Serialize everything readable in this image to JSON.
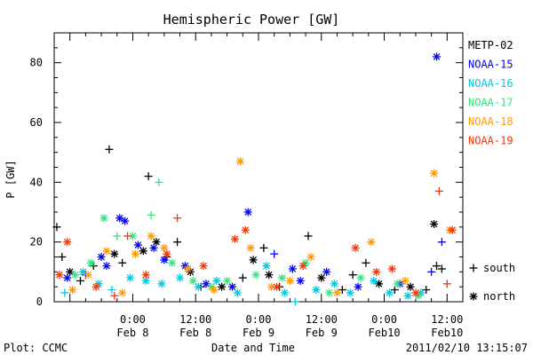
{
  "chart_data": {
    "type": "scatter",
    "title": "Hemispheric Power [GW]",
    "xlabel": "Date and Time",
    "ylabel": "P [GW]",
    "xlim": [
      "2011-02-07 09:00",
      "2011-02-10 15:00"
    ],
    "ylim": [
      0,
      90
    ],
    "yticks": [
      0,
      20,
      40,
      60,
      80
    ],
    "xtick_labels": [
      {
        "time": "2011-02-08 00:00",
        "top": "0:00",
        "bottom": "Feb 8"
      },
      {
        "time": "2011-02-08 12:00",
        "top": "12:00",
        "bottom": "Feb 8"
      },
      {
        "time": "2011-02-09 00:00",
        "top": "0:00",
        "bottom": "Feb 9"
      },
      {
        "time": "2011-02-09 12:00",
        "top": "12:00",
        "bottom": "Feb 9"
      },
      {
        "time": "2011-02-10 00:00",
        "top": "0:00",
        "bottom": "Feb10"
      },
      {
        "time": "2011-02-10 12:00",
        "top": "12:00",
        "bottom": "Feb10"
      }
    ],
    "marker_legend": [
      {
        "symbol": "+",
        "label": "south"
      },
      {
        "symbol": "*",
        "label": "north"
      }
    ],
    "series": [
      {
        "name": "METP-02",
        "color": "#000000",
        "points": [
          {
            "x": "2011-02-07 09:30",
            "y": 25,
            "m": "south"
          },
          {
            "x": "2011-02-07 10:30",
            "y": 15,
            "m": "south"
          },
          {
            "x": "2011-02-07 12:00",
            "y": 10,
            "m": "north"
          },
          {
            "x": "2011-02-07 14:00",
            "y": 7,
            "m": "south"
          },
          {
            "x": "2011-02-07 16:30",
            "y": 12,
            "m": "south"
          },
          {
            "x": "2011-02-07 19:30",
            "y": 51,
            "m": "south"
          },
          {
            "x": "2011-02-07 20:30",
            "y": 16,
            "m": "north"
          },
          {
            "x": "2011-02-07 22:00",
            "y": 13,
            "m": "south"
          },
          {
            "x": "2011-02-08 02:00",
            "y": 17,
            "m": "north"
          },
          {
            "x": "2011-02-08 03:00",
            "y": 42,
            "m": "south"
          },
          {
            "x": "2011-02-08 04:30",
            "y": 20,
            "m": "north"
          },
          {
            "x": "2011-02-08 06:30",
            "y": 15,
            "m": "south"
          },
          {
            "x": "2011-02-08 08:30",
            "y": 20,
            "m": "south"
          },
          {
            "x": "2011-02-08 11:00",
            "y": 10,
            "m": "north"
          },
          {
            "x": "2011-02-08 13:00",
            "y": 5,
            "m": "south"
          },
          {
            "x": "2011-02-08 17:00",
            "y": 5,
            "m": "north"
          },
          {
            "x": "2011-02-08 21:00",
            "y": 8,
            "m": "south"
          },
          {
            "x": "2011-02-08 23:00",
            "y": 14,
            "m": "north"
          },
          {
            "x": "2011-02-09 01:00",
            "y": 18,
            "m": "south"
          },
          {
            "x": "2011-02-09 02:00",
            "y": 9,
            "m": "north"
          },
          {
            "x": "2011-02-09 04:00",
            "y": 5,
            "m": "south"
          },
          {
            "x": "2011-02-09 09:30",
            "y": 22,
            "m": "south"
          },
          {
            "x": "2011-02-09 12:00",
            "y": 8,
            "m": "north"
          },
          {
            "x": "2011-02-09 16:00",
            "y": 4,
            "m": "south"
          },
          {
            "x": "2011-02-09 18:00",
            "y": 9,
            "m": "south"
          },
          {
            "x": "2011-02-09 20:30",
            "y": 13,
            "m": "south"
          },
          {
            "x": "2011-02-09 23:00",
            "y": 6,
            "m": "north"
          },
          {
            "x": "2011-02-10 02:00",
            "y": 4,
            "m": "south"
          },
          {
            "x": "2011-02-10 05:00",
            "y": 5,
            "m": "north"
          },
          {
            "x": "2011-02-10 08:00",
            "y": 4,
            "m": "south"
          },
          {
            "x": "2011-02-10 09:30",
            "y": 26,
            "m": "north"
          },
          {
            "x": "2011-02-10 10:00",
            "y": 12,
            "m": "south"
          },
          {
            "x": "2011-02-10 11:00",
            "y": 11,
            "m": "south"
          }
        ]
      },
      {
        "name": "NOAA-15",
        "color": "#0000ff",
        "points": [
          {
            "x": "2011-02-07 11:30",
            "y": 8,
            "m": "north"
          },
          {
            "x": "2011-02-07 15:00",
            "y": 9,
            "m": "south"
          },
          {
            "x": "2011-02-07 18:00",
            "y": 15,
            "m": "north"
          },
          {
            "x": "2011-02-07 19:00",
            "y": 12,
            "m": "north"
          },
          {
            "x": "2011-02-07 21:30",
            "y": 28,
            "m": "north"
          },
          {
            "x": "2011-02-07 22:30",
            "y": 27,
            "m": "north"
          },
          {
            "x": "2011-02-08 01:00",
            "y": 19,
            "m": "north"
          },
          {
            "x": "2011-02-08 04:00",
            "y": 18,
            "m": "north"
          },
          {
            "x": "2011-02-08 06:00",
            "y": 14,
            "m": "north"
          },
          {
            "x": "2011-02-08 10:00",
            "y": 12,
            "m": "north"
          },
          {
            "x": "2011-02-08 14:00",
            "y": 6,
            "m": "north"
          },
          {
            "x": "2011-02-08 19:00",
            "y": 5,
            "m": "north"
          },
          {
            "x": "2011-02-08 22:00",
            "y": 30,
            "m": "north"
          },
          {
            "x": "2011-02-09 03:00",
            "y": 16,
            "m": "south"
          },
          {
            "x": "2011-02-09 06:30",
            "y": 11,
            "m": "north"
          },
          {
            "x": "2011-02-09 08:00",
            "y": 7,
            "m": "north"
          },
          {
            "x": "2011-02-09 13:00",
            "y": 10,
            "m": "north"
          },
          {
            "x": "2011-02-09 19:00",
            "y": 5,
            "m": "north"
          },
          {
            "x": "2011-02-10 03:00",
            "y": 6,
            "m": "north"
          },
          {
            "x": "2011-02-10 09:00",
            "y": 10,
            "m": "south"
          },
          {
            "x": "2011-02-10 10:00",
            "y": 82,
            "m": "north"
          },
          {
            "x": "2011-02-10 11:00",
            "y": 20,
            "m": "south"
          }
        ]
      },
      {
        "name": "NOAA-16",
        "color": "#00c8e0",
        "points": [
          {
            "x": "2011-02-07 11:00",
            "y": 3,
            "m": "south"
          },
          {
            "x": "2011-02-07 14:30",
            "y": 10,
            "m": "north"
          },
          {
            "x": "2011-02-07 17:30",
            "y": 6,
            "m": "north"
          },
          {
            "x": "2011-02-07 20:00",
            "y": 4,
            "m": "south"
          },
          {
            "x": "2011-02-07 23:30",
            "y": 8,
            "m": "north"
          },
          {
            "x": "2011-02-08 02:30",
            "y": 7,
            "m": "north"
          },
          {
            "x": "2011-02-08 05:30",
            "y": 6,
            "m": "north"
          },
          {
            "x": "2011-02-08 09:00",
            "y": 8,
            "m": "north"
          },
          {
            "x": "2011-02-08 12:30",
            "y": 5,
            "m": "north"
          },
          {
            "x": "2011-02-08 16:00",
            "y": 7,
            "m": "north"
          },
          {
            "x": "2011-02-08 20:00",
            "y": 3,
            "m": "north"
          },
          {
            "x": "2011-02-09 01:30",
            "y": 12,
            "m": "north"
          },
          {
            "x": "2011-02-09 05:00",
            "y": 3,
            "m": "north"
          },
          {
            "x": "2011-02-09 07:00",
            "y": 0,
            "m": "south"
          },
          {
            "x": "2011-02-09 11:00",
            "y": 4,
            "m": "north"
          },
          {
            "x": "2011-02-09 14:30",
            "y": 6,
            "m": "north"
          },
          {
            "x": "2011-02-09 17:30",
            "y": 3,
            "m": "north"
          },
          {
            "x": "2011-02-09 22:00",
            "y": 7,
            "m": "north"
          },
          {
            "x": "2011-02-10 01:00",
            "y": 3,
            "m": "north"
          },
          {
            "x": "2011-02-10 04:30",
            "y": 2,
            "m": "north"
          },
          {
            "x": "2011-02-10 07:00",
            "y": 3,
            "m": "north"
          }
        ]
      },
      {
        "name": "NOAA-17",
        "color": "#33e680",
        "points": [
          {
            "x": "2011-02-07 13:00",
            "y": 9,
            "m": "north"
          },
          {
            "x": "2011-02-07 16:00",
            "y": 13,
            "m": "north"
          },
          {
            "x": "2011-02-07 18:30",
            "y": 28,
            "m": "north"
          },
          {
            "x": "2011-02-07 21:00",
            "y": 22,
            "m": "south"
          },
          {
            "x": "2011-02-08 00:00",
            "y": 22,
            "m": "north"
          },
          {
            "x": "2011-02-08 03:30",
            "y": 29,
            "m": "south"
          },
          {
            "x": "2011-02-08 05:00",
            "y": 40,
            "m": "south"
          },
          {
            "x": "2011-02-08 07:30",
            "y": 13,
            "m": "north"
          },
          {
            "x": "2011-02-08 11:30",
            "y": 7,
            "m": "north"
          },
          {
            "x": "2011-02-08 15:00",
            "y": 5,
            "m": "north"
          },
          {
            "x": "2011-02-08 18:00",
            "y": 7,
            "m": "north"
          },
          {
            "x": "2011-02-08 23:30",
            "y": 9,
            "m": "north"
          },
          {
            "x": "2011-02-09 04:30",
            "y": 8,
            "m": "north"
          },
          {
            "x": "2011-02-09 09:00",
            "y": 13,
            "m": "north"
          },
          {
            "x": "2011-02-09 13:30",
            "y": 3,
            "m": "north"
          },
          {
            "x": "2011-02-09 19:30",
            "y": 8,
            "m": "north"
          },
          {
            "x": "2011-02-10 02:30",
            "y": 6,
            "m": "north"
          },
          {
            "x": "2011-02-10 06:30",
            "y": 2,
            "m": "north"
          }
        ]
      },
      {
        "name": "NOAA-18",
        "color": "#ff9900",
        "points": [
          {
            "x": "2011-02-07 12:30",
            "y": 4,
            "m": "north"
          },
          {
            "x": "2011-02-07 15:30",
            "y": 9,
            "m": "north"
          },
          {
            "x": "2011-02-07 19:00",
            "y": 17,
            "m": "north"
          },
          {
            "x": "2011-02-07 22:00",
            "y": 3,
            "m": "north"
          },
          {
            "x": "2011-02-08 00:30",
            "y": 16,
            "m": "north"
          },
          {
            "x": "2011-02-08 03:30",
            "y": 22,
            "m": "north"
          },
          {
            "x": "2011-02-08 06:00",
            "y": 18,
            "m": "north"
          },
          {
            "x": "2011-02-08 10:30",
            "y": 11,
            "m": "north"
          },
          {
            "x": "2011-02-08 15:30",
            "y": 4,
            "m": "north"
          },
          {
            "x": "2011-02-08 20:30",
            "y": 47,
            "m": "north"
          },
          {
            "x": "2011-02-08 22:30",
            "y": 18,
            "m": "north"
          },
          {
            "x": "2011-02-09 02:30",
            "y": 5,
            "m": "north"
          },
          {
            "x": "2011-02-09 06:00",
            "y": 7,
            "m": "north"
          },
          {
            "x": "2011-02-09 10:00",
            "y": 15,
            "m": "north"
          },
          {
            "x": "2011-02-09 15:00",
            "y": 3,
            "m": "north"
          },
          {
            "x": "2011-02-09 21:30",
            "y": 20,
            "m": "north"
          },
          {
            "x": "2011-02-10 04:00",
            "y": 7,
            "m": "north"
          },
          {
            "x": "2011-02-10 09:30",
            "y": 43,
            "m": "north"
          },
          {
            "x": "2011-02-10 12:30",
            "y": 24,
            "m": "north"
          }
        ]
      },
      {
        "name": "NOAA-19",
        "color": "#ff3300",
        "points": [
          {
            "x": "2011-02-07 10:00",
            "y": 9,
            "m": "north"
          },
          {
            "x": "2011-02-07 11:30",
            "y": 20,
            "m": "north"
          },
          {
            "x": "2011-02-07 17:00",
            "y": 5,
            "m": "north"
          },
          {
            "x": "2011-02-07 20:30",
            "y": 2,
            "m": "south"
          },
          {
            "x": "2011-02-07 23:00",
            "y": 22,
            "m": "south"
          },
          {
            "x": "2011-02-08 02:30",
            "y": 9,
            "m": "north"
          },
          {
            "x": "2011-02-08 06:30",
            "y": 16,
            "m": "north"
          },
          {
            "x": "2011-02-08 08:30",
            "y": 28,
            "m": "south"
          },
          {
            "x": "2011-02-08 13:30",
            "y": 12,
            "m": "north"
          },
          {
            "x": "2011-02-08 19:30",
            "y": 21,
            "m": "north"
          },
          {
            "x": "2011-02-08 21:30",
            "y": 24,
            "m": "north"
          },
          {
            "x": "2011-02-09 03:30",
            "y": 5,
            "m": "north"
          },
          {
            "x": "2011-02-09 08:30",
            "y": 12,
            "m": "north"
          },
          {
            "x": "2011-02-09 18:30",
            "y": 18,
            "m": "north"
          },
          {
            "x": "2011-02-09 22:30",
            "y": 10,
            "m": "north"
          },
          {
            "x": "2011-02-10 01:30",
            "y": 11,
            "m": "north"
          },
          {
            "x": "2011-02-10 06:00",
            "y": 3,
            "m": "north"
          },
          {
            "x": "2011-02-10 10:30",
            "y": 37,
            "m": "south"
          },
          {
            "x": "2011-02-10 12:00",
            "y": 6,
            "m": "south"
          },
          {
            "x": "2011-02-10 13:00",
            "y": 24,
            "m": "north"
          }
        ]
      }
    ]
  },
  "footer": {
    "plot_credit": "Plot: CCMC",
    "timestamp": "2011/02/10 13:15:07"
  }
}
